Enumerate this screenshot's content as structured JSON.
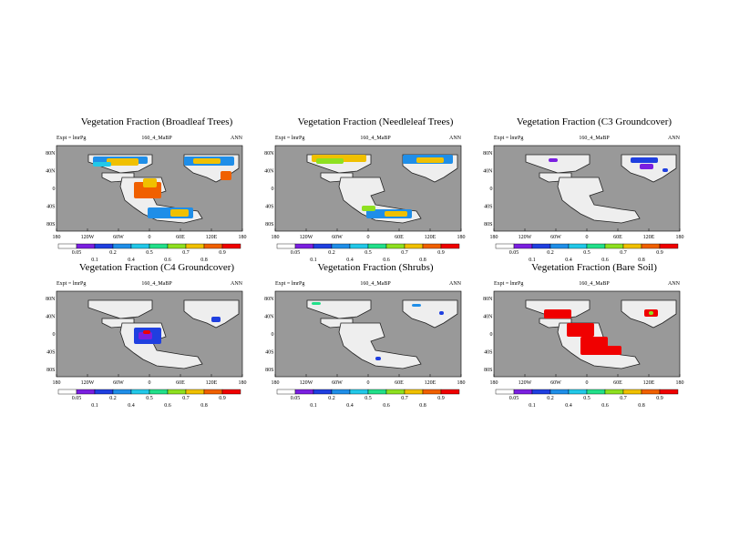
{
  "figure": {
    "panels": [
      {
        "title": "Vegetation Fraction (Broadleaf Trees)",
        "expt": "Expt = lmrPg",
        "case": "160_4_MaBP",
        "season": "ANN",
        "variable": "broadleaf"
      },
      {
        "title": "Vegetation Fraction (Needleleaf Trees)",
        "expt": "Expt = lmrPg",
        "case": "160_4_MaBP",
        "season": "ANN",
        "variable": "needleleaf"
      },
      {
        "title": "Vegetation Fraction (C3 Groundcover)",
        "expt": "Expt = lmrPg",
        "case": "160_4_MaBP",
        "season": "ANN",
        "variable": "c3"
      },
      {
        "title": "Vegetation Fraction (C4 Groundcover)",
        "expt": "Expt = lmrPg",
        "case": "160_4_MaBP",
        "season": "ANN",
        "variable": "c4"
      },
      {
        "title": "Vegetation Fraction (Shrubs)",
        "expt": "Expt = lmrPg",
        "case": "160_4_MaBP",
        "season": "ANN",
        "variable": "shrubs"
      },
      {
        "title": "Vegetation Fraction (Bare Soil)",
        "expt": "Expt = lmrPg",
        "case": "160_4_MaBP",
        "season": "ANN",
        "variable": "bare"
      }
    ],
    "lon_ticks": [
      "180",
      "120W",
      "60W",
      "0",
      "60E",
      "120E",
      "180"
    ],
    "lat_ticks": [
      "80N",
      "40N",
      "0",
      "40S",
      "80S"
    ],
    "colorbar_labels": [
      "0.05",
      "0.1",
      "0.2",
      "0.4",
      "0.5",
      "0.6",
      "0.7",
      "0.8",
      "0.9"
    ],
    "colorbar_colors": [
      "#ffffff",
      "#7a1fe0",
      "#1f3fe0",
      "#1f8ee8",
      "#22c8e8",
      "#22e08a",
      "#8ee020",
      "#f0c000",
      "#f06000",
      "#f00000"
    ],
    "ocean_color": "#999999",
    "land_color": "#eeeeee"
  }
}
